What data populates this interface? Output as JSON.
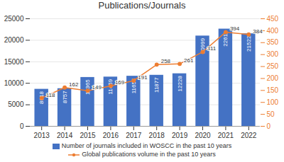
{
  "chart_data": {
    "type": "bar",
    "title": "Publications/Journals",
    "categories": [
      "2013",
      "2014",
      "2015",
      "2016",
      "2017",
      "2018",
      "2019",
      "2020",
      "2021",
      "2022"
    ],
    "series": [
      {
        "name": "Number of journals included in WOSCC in the past 10 years",
        "type": "bar",
        "color": "#4472C4",
        "values": [
          8618,
          8757,
          11365,
          11459,
          11655,
          11877,
          12228,
          20999,
          22611,
          21522
        ]
      },
      {
        "name": "Global publications volume in the past 10 years",
        "type": "line",
        "axis": "y2",
        "color": "#ED7D31",
        "marker": "circle",
        "values": [
          118,
          162,
          149,
          169,
          191,
          258,
          261,
          311,
          394,
          384
        ]
      }
    ],
    "ylim": [
      0,
      25000
    ],
    "yticks": [
      0,
      5000,
      10000,
      15000,
      20000,
      25000
    ],
    "y2lim": [
      0,
      450
    ],
    "y2ticks": [
      0,
      50,
      100,
      150,
      200,
      250,
      300,
      350,
      400,
      450
    ],
    "grid": true,
    "legend": "bottom",
    "data_labels": true
  }
}
